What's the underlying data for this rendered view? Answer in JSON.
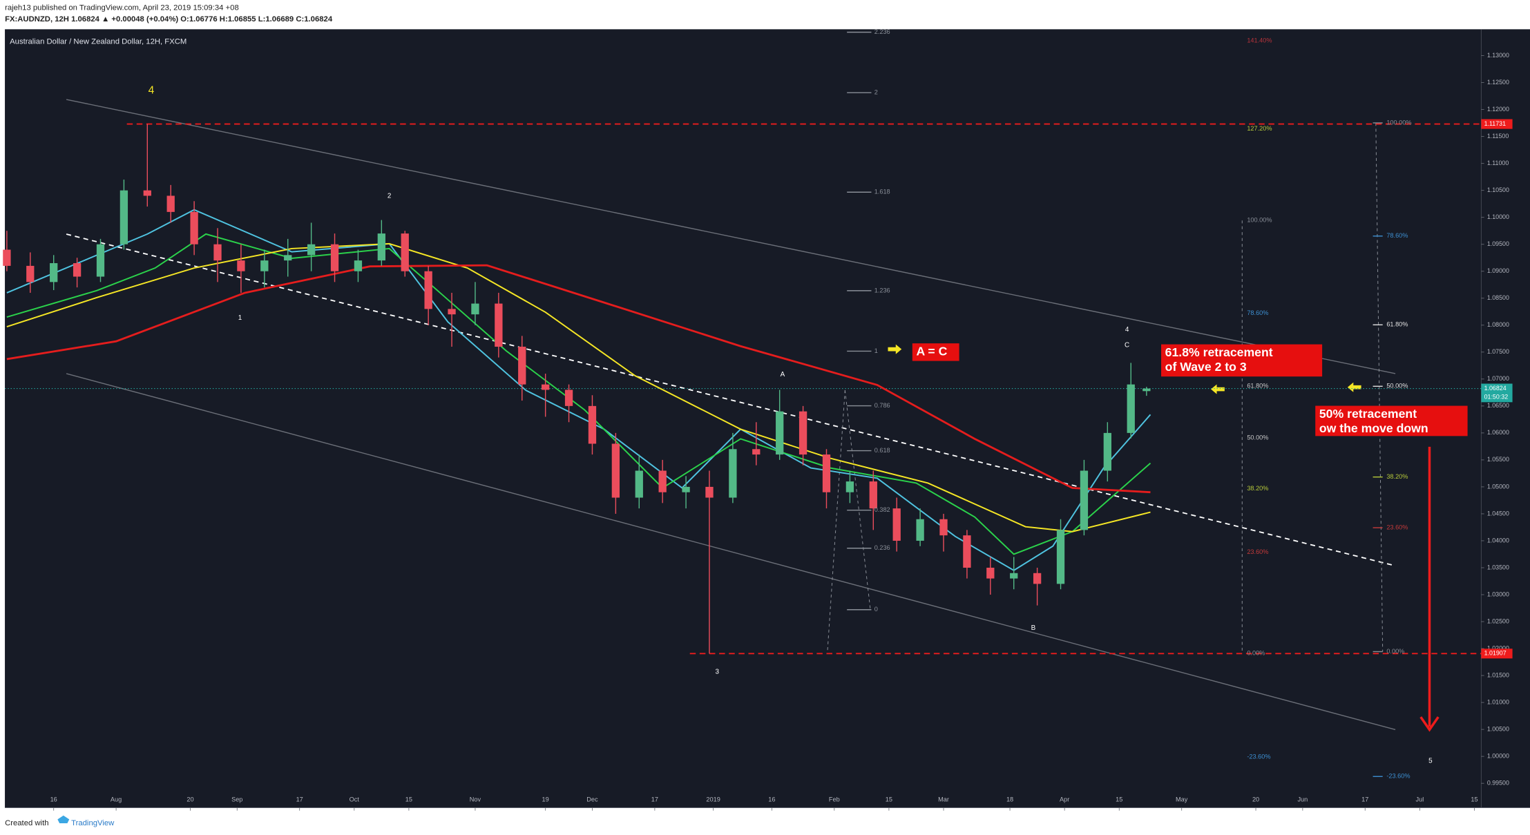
{
  "header": {
    "line1": "rajeh13 published on TradingView.com, April 23, 2019 15:09:34 +08",
    "line2": "FX:AUDNZD, 12H 1.06824 ▲ +0.00048 (+0.04%) O:1.06776 H:1.06855 L:1.06689 C:1.06824"
  },
  "footer": {
    "created": "Created with",
    "brand": "TradingView"
  },
  "chart_data": {
    "type": "candlestick",
    "title": "Australian Dollar / New Zealand Dollar, 12H, FXCM",
    "up_color": "#53b987",
    "down_color": "#eb4d5c",
    "x": [
      -12,
      -6,
      0,
      6,
      12,
      18,
      24,
      30,
      36,
      42,
      48,
      54,
      60,
      66,
      72,
      78,
      84,
      90,
      96,
      102,
      108,
      114,
      120,
      126,
      132,
      138,
      144,
      150,
      156,
      162,
      168,
      174,
      180,
      186,
      192,
      198,
      204,
      210,
      216,
      222,
      228,
      234,
      240,
      246,
      252,
      258,
      264,
      270,
      276,
      280
    ],
    "open": [
      1.094,
      1.091,
      1.088,
      1.0915,
      1.089,
      1.095,
      1.105,
      1.104,
      1.101,
      1.095,
      1.092,
      1.09,
      1.092,
      1.093,
      1.095,
      1.09,
      1.092,
      1.097,
      1.09,
      1.083,
      1.082,
      1.084,
      1.076,
      1.069,
      1.068,
      1.065,
      1.058,
      1.048,
      1.053,
      1.049,
      1.05,
      1.048,
      1.057,
      1.056,
      1.064,
      1.056,
      1.049,
      1.051,
      1.046,
      1.04,
      1.044,
      1.041,
      1.035,
      1.033,
      1.034,
      1.032,
      1.042,
      1.053,
      1.06,
      1.06776
    ],
    "high": [
      1.0975,
      1.0935,
      1.093,
      1.0925,
      1.096,
      1.107,
      1.11731,
      1.106,
      1.103,
      1.098,
      1.095,
      1.094,
      1.096,
      1.099,
      1.097,
      1.094,
      1.0995,
      1.0975,
      1.091,
      1.086,
      1.088,
      1.086,
      1.078,
      1.071,
      1.069,
      1.067,
      1.06,
      1.056,
      1.055,
      1.052,
      1.053,
      1.06,
      1.062,
      1.068,
      1.065,
      1.057,
      1.053,
      1.053,
      1.048,
      1.046,
      1.045,
      1.042,
      1.037,
      1.037,
      1.035,
      1.044,
      1.055,
      1.062,
      1.073,
      1.06855
    ],
    "low": [
      1.09,
      1.086,
      1.0865,
      1.087,
      1.088,
      1.094,
      1.102,
      1.099,
      1.093,
      1.088,
      1.086,
      1.087,
      1.089,
      1.09,
      1.088,
      1.088,
      1.091,
      1.089,
      1.08,
      1.076,
      1.08,
      1.074,
      1.066,
      1.063,
      1.062,
      1.056,
      1.045,
      1.046,
      1.047,
      1.046,
      1.01907,
      1.047,
      1.054,
      1.055,
      1.054,
      1.046,
      1.047,
      1.042,
      1.038,
      1.039,
      1.038,
      1.033,
      1.03,
      1.031,
      1.028,
      1.031,
      1.041,
      1.051,
      1.059,
      1.06689
    ],
    "close": [
      1.091,
      1.088,
      1.0915,
      1.089,
      1.095,
      1.105,
      1.104,
      1.101,
      1.095,
      1.092,
      1.09,
      1.092,
      1.093,
      1.095,
      1.09,
      1.092,
      1.097,
      1.09,
      1.083,
      1.082,
      1.084,
      1.076,
      1.069,
      1.068,
      1.065,
      1.058,
      1.048,
      1.053,
      1.049,
      1.05,
      1.048,
      1.057,
      1.056,
      1.064,
      1.056,
      1.049,
      1.051,
      1.046,
      1.04,
      1.044,
      1.041,
      1.035,
      1.033,
      1.034,
      1.032,
      1.042,
      1.053,
      1.06,
      1.069,
      1.06824
    ],
    "moving_averages": [
      {
        "color": "#4fc3e0",
        "x": [
          -12,
          24,
          36,
          61,
          86,
          101,
          121,
          141,
          161,
          176,
          194,
          211,
          231,
          246,
          256,
          269,
          281
        ],
        "values": [
          1.086,
          1.0969,
          1.1014,
          1.0936,
          1.0951,
          1.0806,
          1.0679,
          1.0607,
          1.0498,
          1.0607,
          1.0535,
          1.0516,
          1.0408,
          1.0345,
          1.039,
          1.0535,
          1.0634
        ]
      },
      {
        "color": "#2bd24b",
        "x": [
          -12,
          11,
          26,
          39,
          61,
          86,
          99,
          116,
          136,
          156,
          176,
          199,
          221,
          236,
          246,
          261,
          281
        ],
        "values": [
          1.0815,
          1.0864,
          1.0906,
          1.0969,
          1.0924,
          1.0942,
          1.086,
          1.0752,
          1.0643,
          1.0498,
          1.0589,
          1.0535,
          1.0507,
          1.0444,
          1.0375,
          1.0417,
          1.0544
        ]
      },
      {
        "color": "#f5e625",
        "x": [
          -12,
          11,
          36,
          61,
          86,
          106,
          126,
          149,
          176,
          199,
          224,
          249,
          261,
          281
        ],
        "values": [
          1.0797,
          1.0851,
          1.0906,
          1.0942,
          1.0951,
          1.0906,
          1.0824,
          1.0706,
          1.0607,
          1.0553,
          1.0507,
          1.0426,
          1.0417,
          1.0453
        ]
      },
      {
        "color": "#e51d1d",
        "x": [
          -12,
          16,
          49,
          81,
          111,
          141,
          176,
          211,
          236,
          261,
          281
        ],
        "values": [
          1.0737,
          1.077,
          1.086,
          1.0909,
          1.0911,
          1.0842,
          1.0761,
          1.0689,
          1.0589,
          1.0498,
          1.049
        ]
      }
    ],
    "levels": [
      1.11731,
      1.01907
    ],
    "level_color": "#ee1c1c",
    "last_price": 1.06824,
    "last_color": "#23a9a0",
    "countdown": "01:50:32",
    "xlim": [
      -12.5,
      365.75
    ],
    "xticks": [
      {
        "value": 0,
        "label": "16"
      },
      {
        "value": 16,
        "label": "Aug"
      },
      {
        "value": 35,
        "label": "20"
      },
      {
        "value": 47,
        "label": "Sep"
      },
      {
        "value": 63,
        "label": "17"
      },
      {
        "value": 77,
        "label": "Oct"
      },
      {
        "value": 91,
        "label": "15"
      },
      {
        "value": 108,
        "label": "Nov"
      },
      {
        "value": 126,
        "label": "19"
      },
      {
        "value": 138,
        "label": "Dec"
      },
      {
        "value": 154,
        "label": "17"
      },
      {
        "value": 169,
        "label": "2019"
      },
      {
        "value": 184,
        "label": "16"
      },
      {
        "value": 200,
        "label": "Feb"
      },
      {
        "value": 214,
        "label": "15"
      },
      {
        "value": 228,
        "label": "Mar"
      },
      {
        "value": 245,
        "label": "18"
      },
      {
        "value": 259,
        "label": "Apr"
      },
      {
        "value": 273,
        "label": "15"
      },
      {
        "value": 289,
        "label": "May"
      },
      {
        "value": 308,
        "label": "20"
      },
      {
        "value": 320,
        "label": "Jun"
      },
      {
        "value": 336,
        "label": "17"
      },
      {
        "value": 350,
        "label": "Jul"
      },
      {
        "value": 364,
        "label": "15"
      }
    ],
    "ylim": [
      0.99048,
      1.13489
    ],
    "yticks": [
      {
        "value": 1.13,
        "label": "1.13000"
      },
      {
        "value": 1.125,
        "label": "1.12500"
      },
      {
        "value": 1.12,
        "label": "1.12000"
      },
      {
        "value": 1.115,
        "label": "1.11500"
      },
      {
        "value": 1.11,
        "label": "1.11000"
      },
      {
        "value": 1.105,
        "label": "1.10500"
      },
      {
        "value": 1.1,
        "label": "1.10000"
      },
      {
        "value": 1.095,
        "label": "1.09500"
      },
      {
        "value": 1.09,
        "label": "1.09000"
      },
      {
        "value": 1.085,
        "label": "1.08500"
      },
      {
        "value": 1.08,
        "label": "1.08000"
      },
      {
        "value": 1.075,
        "label": "1.07500"
      },
      {
        "value": 1.07,
        "label": "1.07000"
      },
      {
        "value": 1.065,
        "label": "1.06500"
      },
      {
        "value": 1.06,
        "label": "1.06000"
      },
      {
        "value": 1.055,
        "label": "1.05500"
      },
      {
        "value": 1.05,
        "label": "1.05000"
      },
      {
        "value": 1.045,
        "label": "1.04500"
      },
      {
        "value": 1.04,
        "label": "1.04000"
      },
      {
        "value": 1.035,
        "label": "1.03500"
      },
      {
        "value": 1.03,
        "label": "1.03000"
      },
      {
        "value": 1.025,
        "label": "1.02500"
      },
      {
        "value": 1.02,
        "label": "1.02000"
      },
      {
        "value": 1.015,
        "label": "1.01500"
      },
      {
        "value": 1.01,
        "label": "1.01000"
      },
      {
        "value": 1.005,
        "label": "1.00500"
      },
      {
        "value": 1.0,
        "label": "1.00000"
      },
      {
        "value": 0.995,
        "label": "0.99500"
      }
    ],
    "wave_labels": [
      {
        "text": "4",
        "color": "#f5e625"
      },
      {
        "text": "2",
        "color": "#ffffff"
      },
      {
        "text": "1",
        "color": "#ffffff"
      },
      {
        "text": "A",
        "color": "#ffffff"
      },
      {
        "text": "3",
        "color": "#ffffff"
      },
      {
        "text": "B",
        "color": "#ffffff"
      },
      {
        "text": "4",
        "color": "#ffffff"
      },
      {
        "text": "C",
        "color": "#ffffff"
      },
      {
        "text": "5",
        "color": "#ffffff"
      }
    ],
    "annotations": [
      {
        "lines": [
          "A = C"
        ]
      },
      {
        "lines": [
          "61.8% retracement",
          "of Wave 2 to 3"
        ]
      },
      {
        "lines": [
          "50% retracement",
          "ow the move down"
        ]
      }
    ],
    "annotation_color": "#e60f0f",
    "fib_extension": {
      "color": "#8a8f98",
      "labels": [
        "2.236",
        "2",
        "1.618",
        "1.236",
        "1",
        "0.786",
        "0.618",
        "0.382",
        "0.236",
        "0"
      ]
    },
    "fib_retracement_1": [
      {
        "label": "141.40%",
        "color": "#b8333b"
      },
      {
        "label": "127.20%",
        "color": "#b6c93a"
      },
      {
        "label": "100.00%",
        "color": "#8a8f98"
      },
      {
        "label": "78.60%",
        "color": "#3d8fd1"
      },
      {
        "label": "61.80%",
        "color": "#c8c8c8"
      },
      {
        "label": "50.00%",
        "color": "#c8c8c8"
      },
      {
        "label": "38.20%",
        "color": "#b6c93a"
      },
      {
        "label": "23.60%",
        "color": "#c43a3a"
      },
      {
        "label": "0.00%",
        "color": "#8a8f98"
      },
      {
        "label": "-23.60%",
        "color": "#3d8fd1"
      }
    ],
    "fib_retracement_2": [
      {
        "label": "100.00%",
        "color": "#8a8f98"
      },
      {
        "label": "78.60%",
        "color": "#3d8fd1"
      },
      {
        "label": "61.80%",
        "color": "#e0e0e0"
      },
      {
        "label": "50.00%",
        "color": "#e0e0e0"
      },
      {
        "label": "38.20%",
        "color": "#b6c93a"
      },
      {
        "label": "23.60%",
        "color": "#c43a3a"
      },
      {
        "label": "0.00%",
        "color": "#8a8f98"
      },
      {
        "label": "-23.60%",
        "color": "#3d8fd1"
      }
    ]
  }
}
